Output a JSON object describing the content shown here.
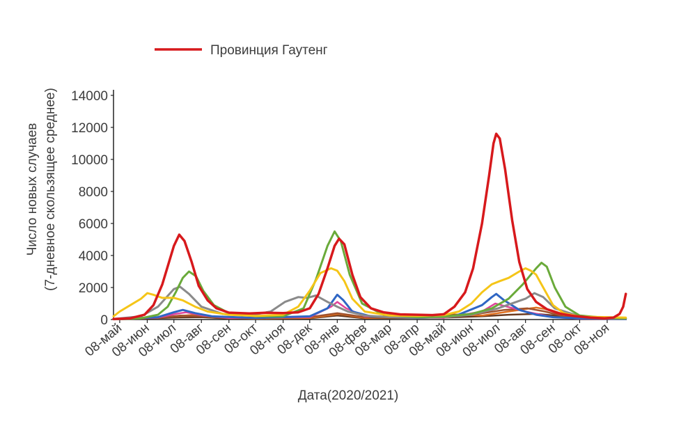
{
  "chart_data": {
    "type": "line",
    "xlabel": "Дата(2020/2021)",
    "ylabel_line1": "Число новых случаев",
    "ylabel_line2": "(7-дневное скользящее среднее)",
    "ylim": [
      0,
      14000
    ],
    "yticks": [
      0,
      2000,
      4000,
      6000,
      8000,
      10000,
      12000,
      14000
    ],
    "yticklabels": [
      "0",
      "2000",
      "4000",
      "6000",
      "8000",
      "10000",
      "12000",
      "14000"
    ],
    "xlim": [
      "2020-05-01",
      "2021-11-30"
    ],
    "xticks": [
      "2020-05-08",
      "2020-06-08",
      "2020-07-08",
      "2020-08-08",
      "2020-09-08",
      "2020-10-08",
      "2020-11-08",
      "2020-12-08",
      "2021-01-08",
      "2021-02-08",
      "2021-03-08",
      "2021-04-08",
      "2021-05-08",
      "2021-06-08",
      "2021-07-08",
      "2021-08-08",
      "2021-09-08",
      "2021-10-08",
      "2021-11-08"
    ],
    "xticklabels": [
      "08-май",
      "08-июн",
      "08-июл",
      "08-авг",
      "08-сен",
      "08-окт",
      "08-ноя",
      "08-дек",
      "08-янв",
      "08-фев",
      "08-мар",
      "08-апр",
      "08-май",
      "08-июн",
      "08-июл",
      "08-авг",
      "08-сен",
      "08-окт",
      "08-ноя"
    ],
    "legend": {
      "placement": "top-left",
      "entries": [
        {
          "name": "Провинция Гаутенг",
          "color": "#d7191c"
        }
      ]
    },
    "series": [
      {
        "name": "Провинция Гаутенг",
        "color": "#d7191c",
        "width": 3.5,
        "points": [
          [
            "2020-05-01",
            30
          ],
          [
            "2020-05-20",
            80
          ],
          [
            "2020-06-05",
            300
          ],
          [
            "2020-06-15",
            900
          ],
          [
            "2020-06-25",
            2200
          ],
          [
            "2020-07-02",
            3500
          ],
          [
            "2020-07-08",
            4600
          ],
          [
            "2020-07-14",
            5300
          ],
          [
            "2020-07-20",
            4900
          ],
          [
            "2020-07-28",
            3600
          ],
          [
            "2020-08-05",
            2100
          ],
          [
            "2020-08-15",
            1200
          ],
          [
            "2020-08-25",
            700
          ],
          [
            "2020-09-08",
            430
          ],
          [
            "2020-10-01",
            380
          ],
          [
            "2020-10-20",
            420
          ],
          [
            "2020-11-08",
            400
          ],
          [
            "2020-11-25",
            450
          ],
          [
            "2020-12-08",
            700
          ],
          [
            "2020-12-18",
            1600
          ],
          [
            "2020-12-28",
            3200
          ],
          [
            "2021-01-05",
            4600
          ],
          [
            "2021-01-10",
            5050
          ],
          [
            "2021-01-16",
            4700
          ],
          [
            "2021-01-25",
            2800
          ],
          [
            "2021-02-03",
            1400
          ],
          [
            "2021-02-15",
            700
          ],
          [
            "2021-03-01",
            450
          ],
          [
            "2021-03-20",
            320
          ],
          [
            "2021-04-08",
            300
          ],
          [
            "2021-04-25",
            280
          ],
          [
            "2021-05-08",
            330
          ],
          [
            "2021-05-20",
            800
          ],
          [
            "2021-06-01",
            1700
          ],
          [
            "2021-06-10",
            3200
          ],
          [
            "2021-06-20",
            6000
          ],
          [
            "2021-06-28",
            9000
          ],
          [
            "2021-07-03",
            11000
          ],
          [
            "2021-07-06",
            11600
          ],
          [
            "2021-07-10",
            11300
          ],
          [
            "2021-07-16",
            9400
          ],
          [
            "2021-07-24",
            6200
          ],
          [
            "2021-08-01",
            3600
          ],
          [
            "2021-08-10",
            1900
          ],
          [
            "2021-08-20",
            1100
          ],
          [
            "2021-09-01",
            650
          ],
          [
            "2021-09-15",
            380
          ],
          [
            "2021-10-01",
            220
          ],
          [
            "2021-10-20",
            120
          ],
          [
            "2021-11-05",
            80
          ],
          [
            "2021-11-15",
            120
          ],
          [
            "2021-11-22",
            350
          ],
          [
            "2021-11-26",
            800
          ],
          [
            "2021-11-29",
            1600
          ]
        ]
      },
      {
        "name": "",
        "color": "#f5c518",
        "width": 3,
        "points": [
          [
            "2020-05-01",
            200
          ],
          [
            "2020-05-08",
            500
          ],
          [
            "2020-05-20",
            900
          ],
          [
            "2020-06-01",
            1300
          ],
          [
            "2020-06-08",
            1650
          ],
          [
            "2020-06-15",
            1550
          ],
          [
            "2020-06-25",
            1350
          ],
          [
            "2020-07-08",
            1350
          ],
          [
            "2020-07-18",
            1200
          ],
          [
            "2020-08-01",
            800
          ],
          [
            "2020-08-15",
            500
          ],
          [
            "2020-09-08",
            300
          ],
          [
            "2020-10-08",
            220
          ],
          [
            "2020-11-08",
            300
          ],
          [
            "2020-11-25",
            800
          ],
          [
            "2020-12-08",
            1800
          ],
          [
            "2020-12-20",
            2900
          ],
          [
            "2021-01-01",
            3200
          ],
          [
            "2021-01-08",
            3050
          ],
          [
            "2021-01-16",
            2400
          ],
          [
            "2021-01-25",
            1300
          ],
          [
            "2021-02-08",
            500
          ],
          [
            "2021-03-08",
            250
          ],
          [
            "2021-04-08",
            230
          ],
          [
            "2021-05-08",
            280
          ],
          [
            "2021-05-25",
            500
          ],
          [
            "2021-06-08",
            1000
          ],
          [
            "2021-06-20",
            1700
          ],
          [
            "2021-07-01",
            2200
          ],
          [
            "2021-07-10",
            2400
          ],
          [
            "2021-07-20",
            2600
          ],
          [
            "2021-08-01",
            3000
          ],
          [
            "2021-08-08",
            3200
          ],
          [
            "2021-08-14",
            3050
          ],
          [
            "2021-08-20",
            2800
          ],
          [
            "2021-08-28",
            2000
          ],
          [
            "2021-09-08",
            900
          ],
          [
            "2021-09-20",
            400
          ],
          [
            "2021-10-08",
            180
          ],
          [
            "2021-11-08",
            150
          ],
          [
            "2021-11-29",
            120
          ]
        ]
      },
      {
        "name": "",
        "color": "#6aaa3a",
        "width": 3,
        "points": [
          [
            "2020-05-01",
            20
          ],
          [
            "2020-06-01",
            80
          ],
          [
            "2020-06-20",
            300
          ],
          [
            "2020-07-01",
            800
          ],
          [
            "2020-07-10",
            1700
          ],
          [
            "2020-07-18",
            2600
          ],
          [
            "2020-07-25",
            3000
          ],
          [
            "2020-08-02",
            2700
          ],
          [
            "2020-08-10",
            1800
          ],
          [
            "2020-08-22",
            900
          ],
          [
            "2020-09-08",
            400
          ],
          [
            "2020-10-08",
            200
          ],
          [
            "2020-11-08",
            200
          ],
          [
            "2020-12-01",
            700
          ],
          [
            "2020-12-15",
            2500
          ],
          [
            "2020-12-28",
            4600
          ],
          [
            "2021-01-05",
            5500
          ],
          [
            "2021-01-12",
            4900
          ],
          [
            "2021-01-22",
            2800
          ],
          [
            "2021-02-05",
            1000
          ],
          [
            "2021-03-01",
            300
          ],
          [
            "2021-04-08",
            150
          ],
          [
            "2021-05-08",
            180
          ],
          [
            "2021-06-08",
            350
          ],
          [
            "2021-07-01",
            700
          ],
          [
            "2021-07-20",
            1300
          ],
          [
            "2021-08-05",
            2200
          ],
          [
            "2021-08-20",
            3200
          ],
          [
            "2021-08-26",
            3550
          ],
          [
            "2021-09-01",
            3300
          ],
          [
            "2021-09-10",
            2000
          ],
          [
            "2021-09-22",
            800
          ],
          [
            "2021-10-08",
            250
          ],
          [
            "2021-11-08",
            100
          ],
          [
            "2021-11-29",
            80
          ]
        ]
      },
      {
        "name": "",
        "color": "#8a8a8a",
        "width": 3,
        "points": [
          [
            "2020-05-01",
            30
          ],
          [
            "2020-06-01",
            200
          ],
          [
            "2020-06-20",
            800
          ],
          [
            "2020-07-08",
            1900
          ],
          [
            "2020-07-15",
            2050
          ],
          [
            "2020-07-25",
            1600
          ],
          [
            "2020-08-08",
            800
          ],
          [
            "2020-09-01",
            350
          ],
          [
            "2020-10-01",
            250
          ],
          [
            "2020-10-25",
            500
          ],
          [
            "2020-11-10",
            1100
          ],
          [
            "2020-11-25",
            1400
          ],
          [
            "2020-12-05",
            1350
          ],
          [
            "2020-12-15",
            1500
          ],
          [
            "2020-12-28",
            1100
          ],
          [
            "2021-01-08",
            800
          ],
          [
            "2021-01-20",
            500
          ],
          [
            "2021-02-08",
            250
          ],
          [
            "2021-03-08",
            150
          ],
          [
            "2021-04-08",
            120
          ],
          [
            "2021-05-08",
            150
          ],
          [
            "2021-06-08",
            300
          ],
          [
            "2021-07-08",
            700
          ],
          [
            "2021-08-08",
            1300
          ],
          [
            "2021-08-18",
            1650
          ],
          [
            "2021-08-28",
            1400
          ],
          [
            "2021-09-10",
            700
          ],
          [
            "2021-10-08",
            200
          ],
          [
            "2021-11-08",
            80
          ],
          [
            "2021-11-29",
            60
          ]
        ]
      },
      {
        "name": "",
        "color": "#2f66c4",
        "width": 3,
        "points": [
          [
            "2020-05-01",
            20
          ],
          [
            "2020-06-20",
            150
          ],
          [
            "2020-07-08",
            450
          ],
          [
            "2020-07-18",
            600
          ],
          [
            "2020-08-01",
            400
          ],
          [
            "2020-08-20",
            200
          ],
          [
            "2020-10-08",
            100
          ],
          [
            "2020-12-08",
            200
          ],
          [
            "2020-12-28",
            700
          ],
          [
            "2021-01-08",
            1550
          ],
          [
            "2021-01-15",
            1200
          ],
          [
            "2021-01-25",
            500
          ],
          [
            "2021-02-15",
            200
          ],
          [
            "2021-04-08",
            100
          ],
          [
            "2021-05-20",
            200
          ],
          [
            "2021-06-20",
            900
          ],
          [
            "2021-07-01",
            1400
          ],
          [
            "2021-07-06",
            1600
          ],
          [
            "2021-07-15",
            1200
          ],
          [
            "2021-08-01",
            600
          ],
          [
            "2021-08-20",
            300
          ],
          [
            "2021-09-08",
            150
          ],
          [
            "2021-10-08",
            80
          ],
          [
            "2021-11-29",
            40
          ]
        ]
      },
      {
        "name": "",
        "color": "#e0449a",
        "width": 2.5,
        "points": [
          [
            "2020-05-01",
            10
          ],
          [
            "2020-06-20",
            120
          ],
          [
            "2020-07-10",
            350
          ],
          [
            "2020-07-22",
            450
          ],
          [
            "2020-08-10",
            250
          ],
          [
            "2020-09-08",
            100
          ],
          [
            "2020-12-08",
            150
          ],
          [
            "2021-01-01",
            800
          ],
          [
            "2021-01-08",
            1100
          ],
          [
            "2021-01-18",
            700
          ],
          [
            "2021-02-08",
            200
          ],
          [
            "2021-05-08",
            100
          ],
          [
            "2021-06-20",
            500
          ],
          [
            "2021-07-05",
            1000
          ],
          [
            "2021-07-15",
            850
          ],
          [
            "2021-08-08",
            500
          ],
          [
            "2021-09-08",
            150
          ],
          [
            "2021-10-08",
            50
          ],
          [
            "2021-11-29",
            30
          ]
        ]
      },
      {
        "name": "",
        "color": "#a0522d",
        "width": 2.5,
        "points": [
          [
            "2020-05-01",
            10
          ],
          [
            "2020-06-20",
            100
          ],
          [
            "2020-07-15",
            250
          ],
          [
            "2020-08-10",
            200
          ],
          [
            "2020-09-08",
            80
          ],
          [
            "2020-12-08",
            150
          ],
          [
            "2021-01-08",
            400
          ],
          [
            "2021-02-08",
            150
          ],
          [
            "2021-04-08",
            100
          ],
          [
            "2021-05-20",
            300
          ],
          [
            "2021-06-15",
            350
          ],
          [
            "2021-07-15",
            600
          ],
          [
            "2021-08-10",
            700
          ],
          [
            "2021-08-30",
            500
          ],
          [
            "2021-09-20",
            200
          ],
          [
            "2021-10-08",
            80
          ],
          [
            "2021-11-29",
            40
          ]
        ]
      },
      {
        "name": "",
        "color": "#e07020",
        "width": 2.5,
        "points": [
          [
            "2020-05-01",
            10
          ],
          [
            "2020-07-08",
            200
          ],
          [
            "2020-08-01",
            300
          ],
          [
            "2020-08-20",
            150
          ],
          [
            "2020-10-08",
            60
          ],
          [
            "2020-12-08",
            100
          ],
          [
            "2021-01-10",
            350
          ],
          [
            "2021-02-08",
            100
          ],
          [
            "2021-04-15",
            150
          ],
          [
            "2021-05-08",
            350
          ],
          [
            "2021-05-25",
            300
          ],
          [
            "2021-06-20",
            250
          ],
          [
            "2021-07-20",
            500
          ],
          [
            "2021-08-20",
            750
          ],
          [
            "2021-09-05",
            600
          ],
          [
            "2021-09-25",
            250
          ],
          [
            "2021-10-15",
            80
          ],
          [
            "2021-11-29",
            40
          ]
        ]
      },
      {
        "name": "",
        "color": "#6b3a1f",
        "width": 2.5,
        "points": [
          [
            "2020-05-01",
            5
          ],
          [
            "2020-07-08",
            120
          ],
          [
            "2020-08-08",
            150
          ],
          [
            "2020-09-08",
            60
          ],
          [
            "2020-12-08",
            80
          ],
          [
            "2021-01-08",
            250
          ],
          [
            "2021-02-08",
            80
          ],
          [
            "2021-05-08",
            120
          ],
          [
            "2021-06-20",
            200
          ],
          [
            "2021-07-20",
            300
          ],
          [
            "2021-08-20",
            350
          ],
          [
            "2021-09-10",
            250
          ],
          [
            "2021-10-08",
            60
          ],
          [
            "2021-11-29",
            30
          ]
        ]
      }
    ]
  }
}
